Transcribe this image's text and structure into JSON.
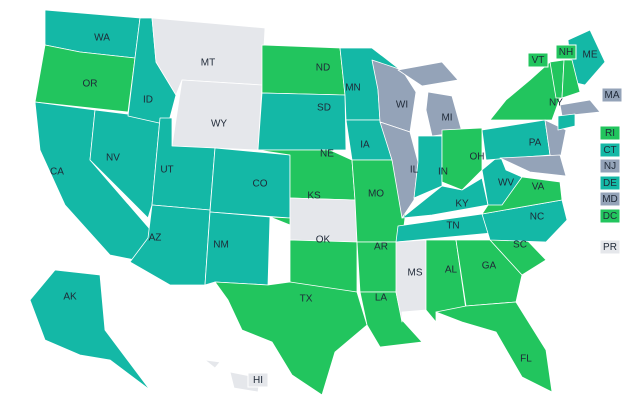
{
  "colors": {
    "green": "#22c55e",
    "teal": "#14b8a6",
    "gray": "#94a3b8",
    "light": "#e5e7eb"
  },
  "states": [
    {
      "code": "WA",
      "group": "teal"
    },
    {
      "code": "OR",
      "group": "green"
    },
    {
      "code": "CA",
      "group": "teal"
    },
    {
      "code": "NV",
      "group": "teal"
    },
    {
      "code": "ID",
      "group": "teal"
    },
    {
      "code": "MT",
      "group": "light"
    },
    {
      "code": "WY",
      "group": "light"
    },
    {
      "code": "UT",
      "group": "teal"
    },
    {
      "code": "CO",
      "group": "teal"
    },
    {
      "code": "AZ",
      "group": "teal"
    },
    {
      "code": "NM",
      "group": "teal"
    },
    {
      "code": "ND",
      "group": "green"
    },
    {
      "code": "SD",
      "group": "teal"
    },
    {
      "code": "NE",
      "group": "green"
    },
    {
      "code": "KS",
      "group": "light"
    },
    {
      "code": "OK",
      "group": "green"
    },
    {
      "code": "TX",
      "group": "green"
    },
    {
      "code": "MN",
      "group": "teal"
    },
    {
      "code": "IA",
      "group": "teal"
    },
    {
      "code": "MO",
      "group": "green"
    },
    {
      "code": "AR",
      "group": "green"
    },
    {
      "code": "LA",
      "group": "green"
    },
    {
      "code": "WI",
      "group": "gray"
    },
    {
      "code": "IL",
      "group": "gray"
    },
    {
      "code": "MI",
      "group": "gray"
    },
    {
      "code": "IN",
      "group": "teal"
    },
    {
      "code": "OH",
      "group": "green"
    },
    {
      "code": "KY",
      "group": "teal"
    },
    {
      "code": "TN",
      "group": "teal"
    },
    {
      "code": "MS",
      "group": "light"
    },
    {
      "code": "AL",
      "group": "green"
    },
    {
      "code": "GA",
      "group": "green"
    },
    {
      "code": "FL",
      "group": "green"
    },
    {
      "code": "SC",
      "group": "green"
    },
    {
      "code": "NC",
      "group": "teal"
    },
    {
      "code": "VA",
      "group": "green"
    },
    {
      "code": "WV",
      "group": "teal"
    },
    {
      "code": "PA",
      "group": "teal"
    },
    {
      "code": "NY",
      "group": "green"
    },
    {
      "code": "ME",
      "group": "teal"
    },
    {
      "code": "AK",
      "group": "teal"
    }
  ],
  "small_states": [
    {
      "code": "VT",
      "group": "green"
    },
    {
      "code": "NH",
      "group": "green"
    },
    {
      "code": "MA",
      "group": "gray"
    },
    {
      "code": "RI",
      "group": "green"
    },
    {
      "code": "CT",
      "group": "teal"
    },
    {
      "code": "NJ",
      "group": "gray"
    },
    {
      "code": "DE",
      "group": "teal"
    },
    {
      "code": "MD",
      "group": "gray"
    },
    {
      "code": "DC",
      "group": "green"
    },
    {
      "code": "PR",
      "group": "light"
    },
    {
      "code": "HI",
      "group": "light"
    }
  ]
}
